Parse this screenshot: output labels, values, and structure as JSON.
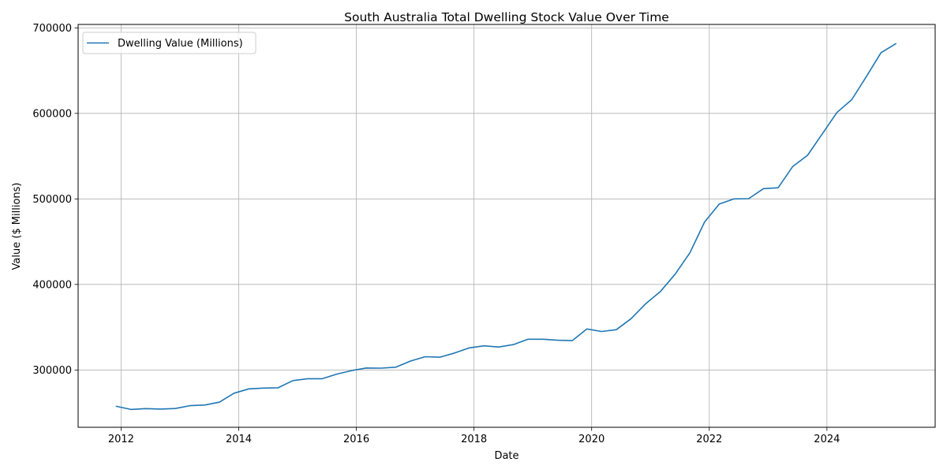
{
  "chart_data": {
    "type": "line",
    "title": "South Australia Total Dwelling Stock Value Over Time",
    "xlabel": "Date",
    "ylabel": "Value ($ Millions)",
    "xlim": [
      2011.27,
      2025.84
    ],
    "ylim": [
      233000,
      704000
    ],
    "xticks": [
      2012,
      2014,
      2016,
      2018,
      2020,
      2022,
      2024
    ],
    "xtick_labels": [
      "2012",
      "2014",
      "2016",
      "2018",
      "2020",
      "2022",
      "2024"
    ],
    "yticks": [
      300000,
      400000,
      500000,
      600000,
      700000
    ],
    "ytick_labels": [
      "300000",
      "400000",
      "500000",
      "600000",
      "700000"
    ],
    "grid": true,
    "legend": {
      "position": "top-left",
      "entries": [
        "Dwelling Value (Millions)"
      ]
    },
    "series": [
      {
        "name": "Dwelling Value (Millions)",
        "color": "#1f77b4",
        "x": [
          2011.92,
          2012.17,
          2012.42,
          2012.67,
          2012.92,
          2013.17,
          2013.42,
          2013.67,
          2013.92,
          2014.17,
          2014.42,
          2014.67,
          2014.92,
          2015.17,
          2015.42,
          2015.67,
          2015.92,
          2016.17,
          2016.42,
          2016.67,
          2016.92,
          2017.17,
          2017.42,
          2017.67,
          2017.92,
          2018.17,
          2018.42,
          2018.67,
          2018.92,
          2019.17,
          2019.42,
          2019.67,
          2019.92,
          2020.17,
          2020.42,
          2020.67,
          2020.92,
          2021.17,
          2021.42,
          2021.67,
          2021.92,
          2022.17,
          2022.42,
          2022.67,
          2022.92,
          2023.17,
          2023.42,
          2023.67,
          2023.92,
          2024.17,
          2024.42,
          2024.67,
          2024.92,
          2025.17
        ],
        "values": [
          257500,
          253800,
          254800,
          254300,
          254900,
          258300,
          259000,
          262300,
          272800,
          277900,
          278800,
          279200,
          287600,
          289800,
          289800,
          295200,
          299300,
          302300,
          302100,
          303200,
          310400,
          315500,
          314900,
          319800,
          325800,
          328200,
          326800,
          329700,
          336000,
          336000,
          334800,
          334300,
          347900,
          345000,
          347100,
          359900,
          377500,
          391800,
          412000,
          437000,
          473000,
          494000,
          500000,
          500300,
          512000,
          513000,
          538000,
          551000,
          576000,
          601000,
          616000,
          643000,
          671000,
          681500
        ]
      }
    ]
  }
}
